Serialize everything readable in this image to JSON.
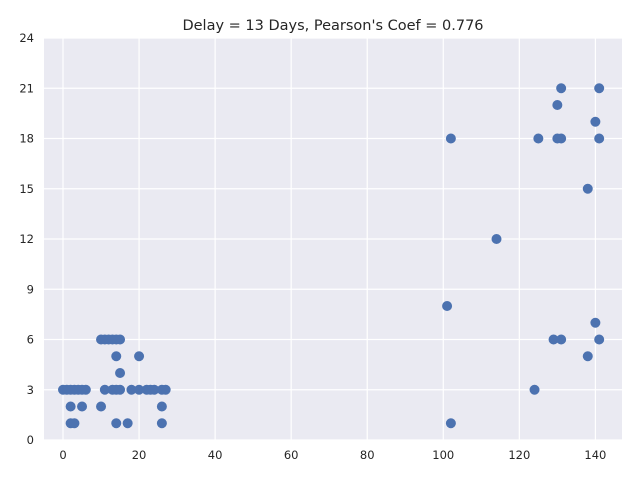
{
  "chart_data": {
    "type": "scatter",
    "title": "Delay = 13 Days, Pearson's Coef = 0.776",
    "xlabel": "",
    "ylabel": "",
    "xlim": [
      -5,
      147
    ],
    "ylim": [
      0,
      24
    ],
    "xticks": [
      0,
      20,
      40,
      60,
      80,
      100,
      120,
      140
    ],
    "yticks": [
      0,
      3,
      6,
      9,
      12,
      15,
      18,
      21,
      24
    ],
    "grid": true,
    "colors": {
      "background": "#eaeaf2",
      "grid": "#ffffff",
      "marker": "#4c72b0"
    },
    "points": [
      {
        "x": 0,
        "y": 3
      },
      {
        "x": 1,
        "y": 3
      },
      {
        "x": 2,
        "y": 3
      },
      {
        "x": 3,
        "y": 3
      },
      {
        "x": 4,
        "y": 3
      },
      {
        "x": 5,
        "y": 3
      },
      {
        "x": 6,
        "y": 3
      },
      {
        "x": 2,
        "y": 2
      },
      {
        "x": 5,
        "y": 2
      },
      {
        "x": 2,
        "y": 1
      },
      {
        "x": 3,
        "y": 1
      },
      {
        "x": 10,
        "y": 6
      },
      {
        "x": 11,
        "y": 6
      },
      {
        "x": 12,
        "y": 6
      },
      {
        "x": 13,
        "y": 6
      },
      {
        "x": 14,
        "y": 6
      },
      {
        "x": 15,
        "y": 6
      },
      {
        "x": 10,
        "y": 2
      },
      {
        "x": 11,
        "y": 3
      },
      {
        "x": 13,
        "y": 3
      },
      {
        "x": 14,
        "y": 3
      },
      {
        "x": 15,
        "y": 3
      },
      {
        "x": 14,
        "y": 5
      },
      {
        "x": 15,
        "y": 4
      },
      {
        "x": 14,
        "y": 1
      },
      {
        "x": 17,
        "y": 1
      },
      {
        "x": 18,
        "y": 3
      },
      {
        "x": 20,
        "y": 3
      },
      {
        "x": 20,
        "y": 5
      },
      {
        "x": 22,
        "y": 3
      },
      {
        "x": 23,
        "y": 3
      },
      {
        "x": 24,
        "y": 3
      },
      {
        "x": 26,
        "y": 3
      },
      {
        "x": 27,
        "y": 3
      },
      {
        "x": 26,
        "y": 2
      },
      {
        "x": 26,
        "y": 1
      },
      {
        "x": 101,
        "y": 8
      },
      {
        "x": 102,
        "y": 18
      },
      {
        "x": 102,
        "y": 1
      },
      {
        "x": 114,
        "y": 12
      },
      {
        "x": 124,
        "y": 3
      },
      {
        "x": 125,
        "y": 18
      },
      {
        "x": 129,
        "y": 6
      },
      {
        "x": 130,
        "y": 18
      },
      {
        "x": 130,
        "y": 20
      },
      {
        "x": 131,
        "y": 21
      },
      {
        "x": 131,
        "y": 18
      },
      {
        "x": 131,
        "y": 6
      },
      {
        "x": 138,
        "y": 15
      },
      {
        "x": 138,
        "y": 5
      },
      {
        "x": 140,
        "y": 19
      },
      {
        "x": 140,
        "y": 7
      },
      {
        "x": 141,
        "y": 21
      },
      {
        "x": 141,
        "y": 18
      },
      {
        "x": 141,
        "y": 6
      }
    ]
  }
}
